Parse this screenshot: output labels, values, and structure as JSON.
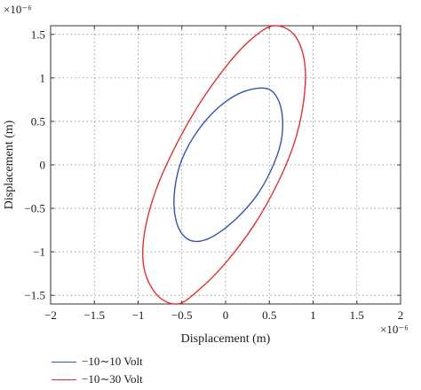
{
  "chart_data": {
    "type": "line",
    "title": "",
    "xlabel": "Displacement (m)",
    "ylabel": "Displacement (m)",
    "x_exponent_label": "×10⁻⁶",
    "y_exponent_label": "×10⁻⁶",
    "xlim": [
      -2,
      2
    ],
    "ylim": [
      -1.6,
      1.6
    ],
    "xticks": [
      -2,
      -1.5,
      -1,
      -0.5,
      0,
      0.5,
      1,
      1.5,
      2
    ],
    "xtick_labels": [
      "−2",
      "−1.5",
      "−1",
      "−0.5",
      "0",
      "0.5",
      "1",
      "1.5",
      "2"
    ],
    "yticks": [
      -1.5,
      -1,
      -0.5,
      0,
      0.5,
      1,
      1.5
    ],
    "ytick_labels": [
      "−1.5",
      "−1",
      "−0.5",
      "0",
      "0.5",
      "1",
      "1.5"
    ],
    "grid": true,
    "legend_position": "bottom",
    "series": [
      {
        "name": "−10∼10 Volt",
        "color": "#3355aa",
        "x": [
          0.46,
          0.59,
          0.65,
          0.63,
          0.52,
          0.35,
          0.12,
          -0.14,
          -0.35,
          -0.5,
          -0.58,
          -0.58,
          -0.5,
          -0.32,
          -0.07,
          0.2,
          0.46
        ],
        "y": [
          0.88,
          0.77,
          0.54,
          0.25,
          -0.06,
          -0.36,
          -0.62,
          -0.82,
          -0.88,
          -0.79,
          -0.57,
          -0.27,
          0.06,
          0.39,
          0.67,
          0.84,
          0.88
        ]
      },
      {
        "name": "−10∼30 Volt",
        "color": "#dd3333",
        "x": [
          0.55,
          0.78,
          0.9,
          0.9,
          0.8,
          0.6,
          0.32,
          -0.02,
          -0.32,
          -0.55,
          -0.78,
          -0.93,
          -0.93,
          -0.8,
          -0.58,
          -0.3,
          0.02,
          0.3,
          0.55
        ],
        "y": [
          1.6,
          1.5,
          1.2,
          0.8,
          0.3,
          -0.2,
          -0.7,
          -1.15,
          -1.45,
          -1.6,
          -1.5,
          -1.2,
          -0.8,
          -0.3,
          0.2,
          0.7,
          1.15,
          1.45,
          1.6
        ]
      }
    ]
  }
}
